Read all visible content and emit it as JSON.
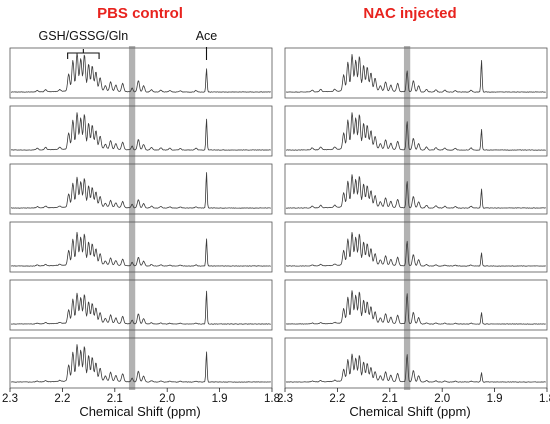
{
  "chart_data": [
    {
      "type": "line",
      "title": "PBS control",
      "xlabel": "Chemical Shift (ppm)",
      "x_range": [
        2.3,
        1.8
      ],
      "x_reversed": true,
      "ticks": [
        "2.3",
        "2.2",
        "2.1",
        "2.0",
        "1.9",
        "1.8"
      ],
      "tick_values": [
        2.3,
        2.2,
        2.1,
        2.0,
        1.9,
        1.8
      ],
      "highlight_band_ppm": [
        2.073,
        2.061
      ],
      "annotations": [
        {
          "label": "GSH/GSSG/Gln",
          "ppm_range": [
            2.19,
            2.13
          ]
        },
        {
          "label": "Ace",
          "ppm": 1.925
        }
      ],
      "spectra": [
        {
          "base": 0.18,
          "cluster": 1.0,
          "mid": 0.55,
          "ace": 0.62,
          "band": 0.1
        },
        {
          "base": 0.22,
          "cluster": 0.95,
          "mid": 0.5,
          "ace": 0.82,
          "band": 0.1
        },
        {
          "base": 0.15,
          "cluster": 0.78,
          "mid": 0.4,
          "ace": 0.95,
          "band": 0.1
        },
        {
          "base": 0.12,
          "cluster": 0.85,
          "mid": 0.42,
          "ace": 0.72,
          "band": 0.1
        },
        {
          "base": 0.1,
          "cluster": 0.78,
          "mid": 0.48,
          "ace": 0.88,
          "band": 0.1
        },
        {
          "base": 0.1,
          "cluster": 0.95,
          "mid": 0.52,
          "ace": 0.8,
          "band": 0.1
        }
      ]
    },
    {
      "type": "line",
      "title": "NAC injected",
      "xlabel": "Chemical Shift (ppm)",
      "x_range": [
        2.3,
        1.8
      ],
      "x_reversed": true,
      "ticks": [
        "2.3",
        "2.2",
        "2.1",
        "2.0",
        "1.9",
        "1.8"
      ],
      "tick_values": [
        2.3,
        2.2,
        2.1,
        2.0,
        1.9,
        1.8
      ],
      "highlight_band_ppm": [
        2.073,
        2.061
      ],
      "annotations": [],
      "spectra": [
        {
          "base": 0.22,
          "cluster": 0.95,
          "mid": 0.55,
          "ace": 0.85,
          "band": 0.55
        },
        {
          "base": 0.25,
          "cluster": 0.95,
          "mid": 0.55,
          "ace": 0.55,
          "band": 0.75
        },
        {
          "base": 0.22,
          "cluster": 0.85,
          "mid": 0.55,
          "ace": 0.5,
          "band": 0.7
        },
        {
          "base": 0.12,
          "cluster": 0.85,
          "mid": 0.55,
          "ace": 0.35,
          "band": 0.65
        },
        {
          "base": 0.1,
          "cluster": 0.85,
          "mid": 0.55,
          "ace": 0.3,
          "band": 0.8
        },
        {
          "base": 0.12,
          "cluster": 0.7,
          "mid": 0.55,
          "ace": 0.25,
          "band": 0.72
        }
      ]
    }
  ]
}
